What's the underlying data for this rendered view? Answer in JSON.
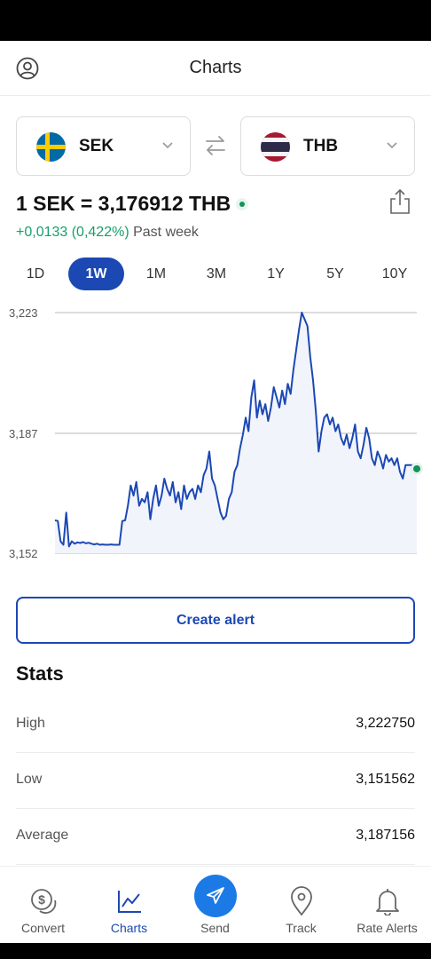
{
  "header": {
    "title": "Charts"
  },
  "pair": {
    "from": {
      "code": "SEK"
    },
    "to": {
      "code": "THB"
    }
  },
  "rate": {
    "text": "1 SEK = 3,176912 THB",
    "change": "+0,0133 (0,422%)",
    "period": "Past week",
    "change_color": "#14a06b"
  },
  "ranges": [
    "1D",
    "1W",
    "1M",
    "3M",
    "1Y",
    "5Y",
    "10Y"
  ],
  "active_range": "1W",
  "chart_data": {
    "type": "line",
    "y_ticks": [
      "3,223",
      "3,187",
      "3,152"
    ],
    "ylim": [
      3.152,
      3.223
    ],
    "grid": true,
    "color": "#1c48b4",
    "series": [
      {
        "values": [
          3.1617,
          3.1615,
          3.1555,
          3.1545,
          3.164,
          3.154,
          3.1555,
          3.1548,
          3.1552,
          3.155,
          3.1553,
          3.1549,
          3.1551,
          3.1548,
          3.1546,
          3.1548,
          3.1545,
          3.1546,
          3.1545,
          3.1545,
          3.1546,
          3.1545,
          3.1545,
          3.1545,
          3.1615,
          3.1617,
          3.166,
          3.172,
          3.169,
          3.173,
          3.166,
          3.168,
          3.167,
          3.17,
          3.162,
          3.168,
          3.172,
          3.166,
          3.169,
          3.174,
          3.171,
          3.169,
          3.173,
          3.167,
          3.17,
          3.165,
          3.172,
          3.168,
          3.17,
          3.171,
          3.168,
          3.172,
          3.17,
          3.175,
          3.177,
          3.182,
          3.174,
          3.172,
          3.168,
          3.164,
          3.162,
          3.163,
          3.168,
          3.17,
          3.176,
          3.178,
          3.183,
          3.187,
          3.192,
          3.188,
          3.198,
          3.203,
          3.192,
          3.197,
          3.193,
          3.196,
          3.191,
          3.195,
          3.201,
          3.198,
          3.195,
          3.2,
          3.196,
          3.202,
          3.199,
          3.206,
          3.212,
          3.218,
          3.223,
          3.221,
          3.219,
          3.21,
          3.203,
          3.194,
          3.182,
          3.188,
          3.192,
          3.193,
          3.19,
          3.192,
          3.188,
          3.19,
          3.186,
          3.184,
          3.187,
          3.183,
          3.186,
          3.19,
          3.182,
          3.18,
          3.184,
          3.189,
          3.186,
          3.18,
          3.178,
          3.182,
          3.18,
          3.177,
          3.181,
          3.179,
          3.18,
          3.178,
          3.18,
          3.176,
          3.174,
          3.178,
          3.178,
          3.178,
          3.178,
          3.1769
        ]
      }
    ]
  },
  "actions": {
    "create_alert": "Create alert"
  },
  "stats": {
    "title": "Stats",
    "rows": [
      {
        "label": "High",
        "value": "3,222750"
      },
      {
        "label": "Low",
        "value": "3,151562"
      },
      {
        "label": "Average",
        "value": "3,187156"
      }
    ]
  },
  "nav": {
    "items": [
      {
        "label": "Convert",
        "icon": "coins-icon"
      },
      {
        "label": "Charts",
        "icon": "chart-icon"
      },
      {
        "label": "Send",
        "icon": "send-icon"
      },
      {
        "label": "Track",
        "icon": "location-pin-icon"
      },
      {
        "label": "Rate Alerts",
        "icon": "bell-icon"
      }
    ],
    "active": "Charts"
  }
}
